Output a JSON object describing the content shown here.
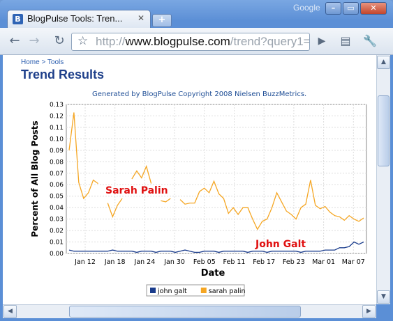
{
  "browser": {
    "brand": "Google",
    "tab_title": "BlogPulse Tools: Tren...",
    "tab_close": "✕",
    "new_tab": "+",
    "url_prefix": "http://",
    "url_host": "www.blogpulse.com",
    "url_path": "/trend?query1=",
    "window_buttons": [
      "–",
      "▭",
      "✕"
    ]
  },
  "page": {
    "breadcrumb": "Home > Tools",
    "title": "Trend Results",
    "copyright": "Generated by BlogPulse Copyright 2008 Nielsen BuzzMetrics."
  },
  "chart_data": {
    "type": "line",
    "xlabel": "Date",
    "ylabel": "Percent of All Blog Posts",
    "ylim": [
      0,
      0.13
    ],
    "yticks": [
      "0.00",
      "0.01",
      "0.02",
      "0.03",
      "0.04",
      "0.05",
      "0.06",
      "0.07",
      "0.08",
      "0.09",
      "0.10",
      "0.11",
      "0.12",
      "0.13"
    ],
    "xticks": [
      "Jan 12",
      "Jan 18",
      "Jan 24",
      "Jan 30",
      "Feb 05",
      "Feb 11",
      "Feb 17",
      "Feb 23",
      "Mar 01",
      "Mar 07"
    ],
    "grid": true,
    "legend_position": "bottom",
    "annotations": [
      {
        "text": "Sarah Palin",
        "color": "#e01010"
      },
      {
        "text": "John Galt",
        "color": "#e01010"
      }
    ],
    "series": [
      {
        "name": "sarah palin",
        "color": "#f5a623",
        "values": [
          0.09,
          0.123,
          0.062,
          0.048,
          0.053,
          0.064,
          0.061,
          null,
          0.044,
          0.032,
          0.042,
          0.048,
          null,
          0.065,
          0.072,
          0.066,
          0.076,
          0.061,
          null,
          0.046,
          0.045,
          0.048,
          null,
          0.047,
          0.043,
          0.044,
          0.044,
          0.054,
          0.057,
          0.053,
          0.063,
          0.052,
          0.048,
          0.035,
          0.04,
          0.034,
          0.04,
          0.04,
          0.03,
          0.021,
          0.028,
          0.03,
          0.04,
          0.053,
          0.045,
          0.037,
          0.034,
          0.03,
          0.04,
          0.043,
          0.064,
          0.042,
          0.039,
          0.041,
          0.036,
          0.033,
          0.032,
          0.029,
          0.033,
          0.03,
          0.028,
          0.031
        ]
      },
      {
        "name": "john galt",
        "color": "#1a3c8c",
        "values": [
          0.003,
          0.002,
          0.002,
          0.002,
          0.002,
          0.002,
          0.002,
          0.002,
          0.002,
          0.003,
          0.002,
          0.002,
          0.002,
          0.002,
          0.001,
          0.002,
          0.002,
          0.002,
          0.001,
          0.002,
          0.002,
          0.002,
          0.001,
          0.002,
          0.003,
          0.002,
          0.001,
          0.001,
          0.002,
          0.002,
          0.002,
          0.001,
          0.002,
          0.002,
          0.002,
          0.002,
          0.002,
          0.001,
          0.002,
          0.002,
          0.002,
          0.001,
          0.002,
          0.002,
          0.002,
          0.002,
          0.002,
          0.002,
          0.001,
          0.002,
          0.002,
          0.002,
          0.002,
          0.003,
          0.003,
          0.003,
          0.005,
          0.005,
          0.006,
          0.01,
          0.008,
          0.01
        ]
      }
    ]
  }
}
